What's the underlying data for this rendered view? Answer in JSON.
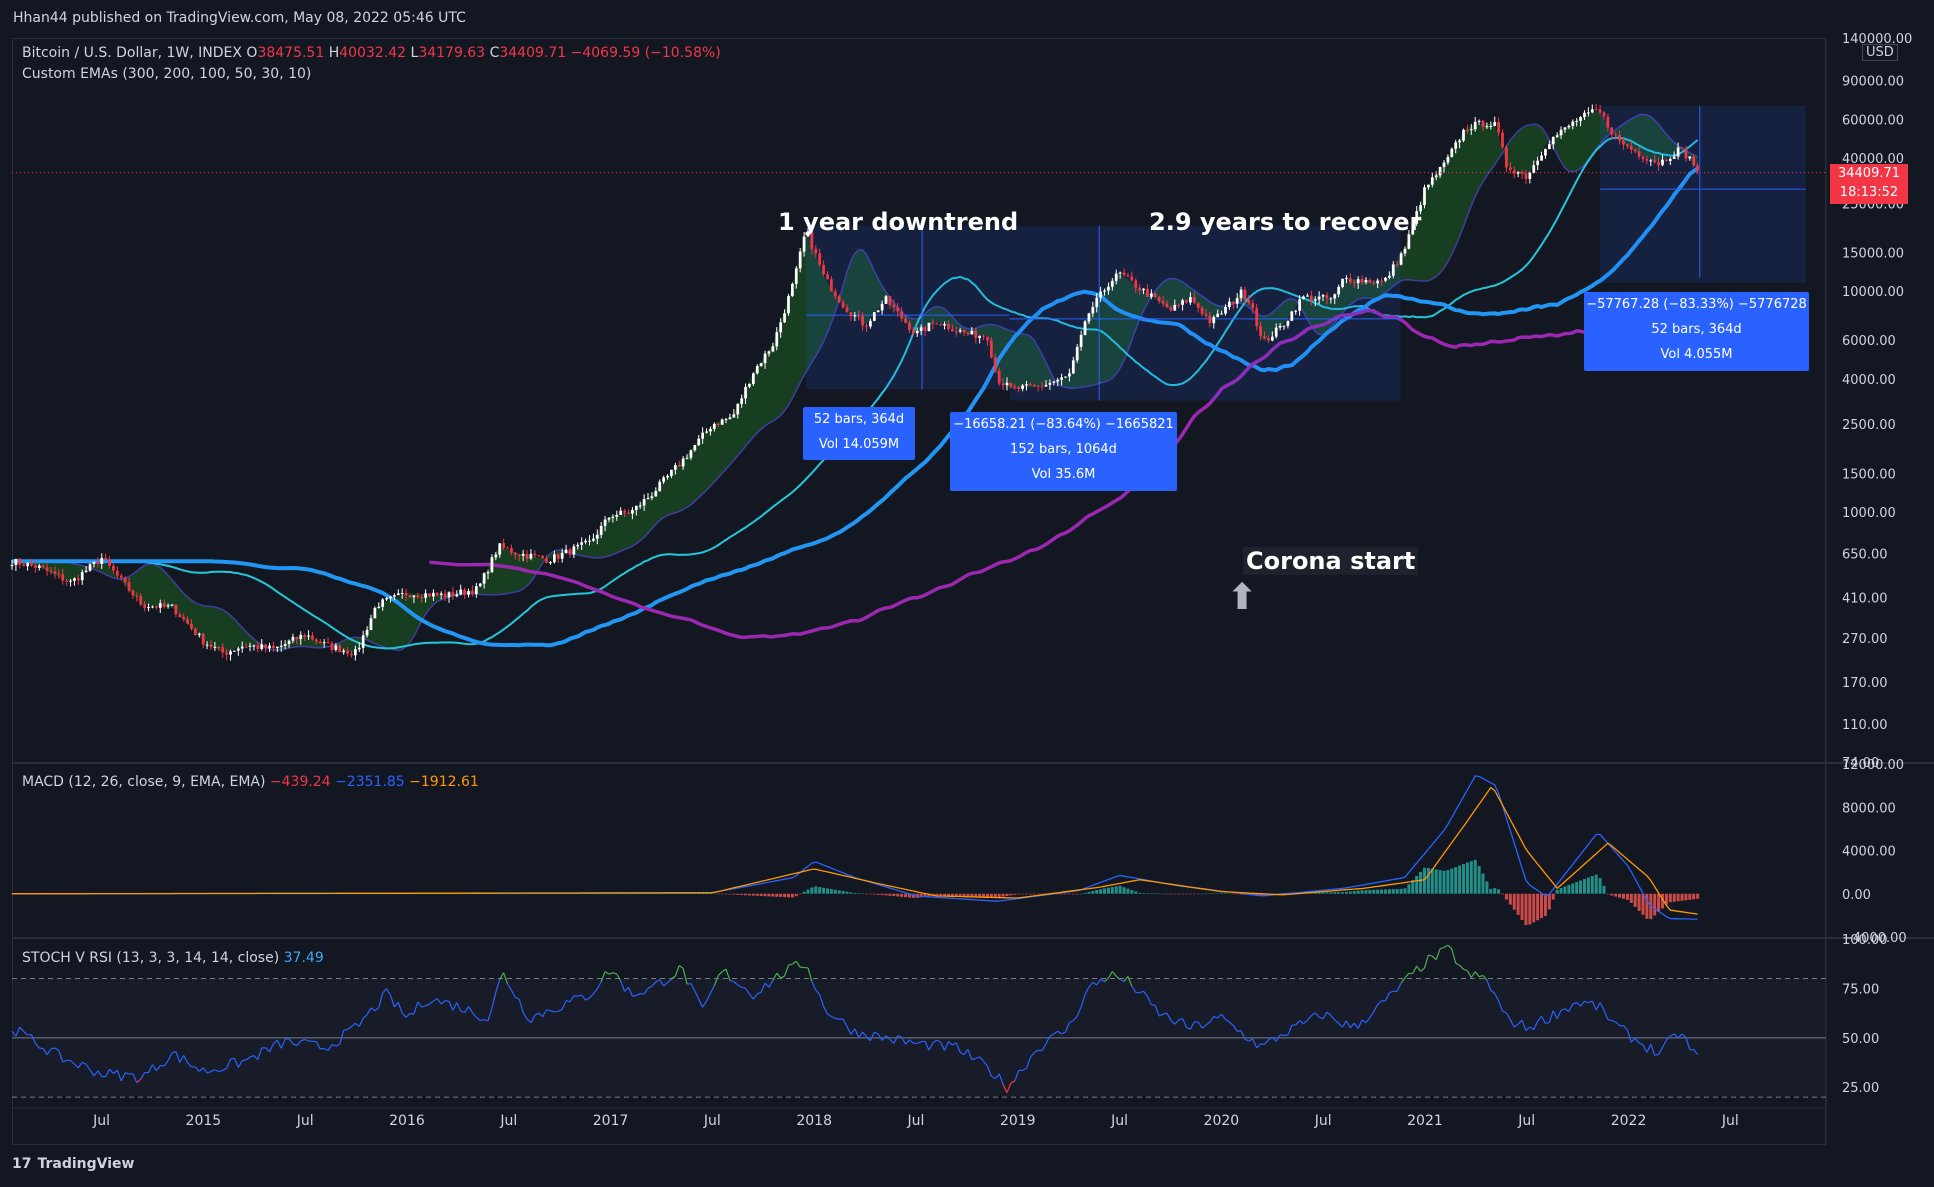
{
  "header": {
    "published": "Hhan44 published on TradingView.com, May 08, 2022 05:46 UTC"
  },
  "symbol": {
    "name": "Bitcoin / U.S. Dollar, 1W, INDEX",
    "o_label": "O",
    "o": "38475.51",
    "h_label": "H",
    "h": "40032.42",
    "l_label": "L",
    "l": "34179.63",
    "c_label": "C",
    "c": "34409.71",
    "change": "−4069.59 (−10.58%)"
  },
  "ema_legend": "Custom EMAs (300, 200, 100, 50, 30, 10)",
  "macd_legend": {
    "label": "MACD (12, 26, close, 9, EMA, EMA)",
    "hist": "−439.24",
    "macd": "−2351.85",
    "signal": "−1912.61"
  },
  "stoch_legend": {
    "label": "STOCH V RSI (13, 3, 3, 14, 14, close)",
    "value": "37.49"
  },
  "price_tag": {
    "price": "34409.71",
    "countdown": "18:13:52"
  },
  "currency": "USD",
  "annotations": {
    "downtrend": "1 year downtrend",
    "recover": "2.9 years to recover",
    "corona": "Corona start",
    "corona_arrow": "⬆"
  },
  "measure_boxes": {
    "box1": {
      "line1": "52 bars, 364d",
      "line2": "Vol 14.059M"
    },
    "box2": {
      "line1": "−16658.21 (−83.64%) −1665821",
      "line2": "152 bars, 1064d",
      "line3": "Vol 35.6M"
    },
    "box3": {
      "line1": "−57767.28 (−83.33%) −5776728",
      "line2": "52 bars, 364d",
      "line3": "Vol 4.055M"
    }
  },
  "footer": {
    "brand": "TradingView",
    "logo": "17"
  },
  "colors": {
    "background": "#131722",
    "up": "#ffffff",
    "down": "#f23645",
    "ema10": "#3f3d9e",
    "ema30": "#26c6da",
    "ema50": "#2196f3",
    "ema100": "#9c27b0",
    "ribbon_up": "#1b5e20",
    "ribbon_down": "#4a1418",
    "macd": "#2962ff",
    "signal": "#ff9800",
    "hist_pos": "#26a69a",
    "hist_neg": "#ef5350",
    "stoch_up": "#4caf50",
    "stoch": "#2962ff",
    "stoch_down": "#f23645",
    "measure": "#2962ff"
  },
  "chart_data": [
    {
      "type": "candlestick",
      "title": "Bitcoin / U.S. Dollar, 1W, INDEX",
      "scale": "log",
      "ylim": [
        74,
        140000
      ],
      "y_ticks": [
        "140000.00",
        "90000.00",
        "60000.00",
        "40000.00",
        "25000.00",
        "15000.00",
        "10000.00",
        "6000.00",
        "4000.00",
        "2500.00",
        "1500.00",
        "1000.00",
        "650.00",
        "410.00",
        "270.00",
        "170.00",
        "110.00",
        "74.00"
      ],
      "x_ticks": [
        "Jul",
        "2015",
        "Jul",
        "2016",
        "Jul",
        "2017",
        "Jul",
        "2018",
        "Jul",
        "2019",
        "Jul",
        "2020",
        "Jul",
        "2021",
        "Jul",
        "2022",
        "Jul"
      ],
      "x_tick_dates": [
        2014.5,
        2015.0,
        2015.5,
        2016.0,
        2016.5,
        2017.0,
        2017.5,
        2018.0,
        2018.5,
        2019.0,
        2019.5,
        2020.0,
        2020.5,
        2021.0,
        2021.5,
        2022.0,
        2022.5
      ],
      "xlim": [
        2014.06,
        2022.96
      ],
      "anchors": [
        [
          2014.06,
          600
        ],
        [
          2014.2,
          560
        ],
        [
          2014.35,
          480
        ],
        [
          2014.5,
          620
        ],
        [
          2014.7,
          380
        ],
        [
          2014.85,
          370
        ],
        [
          2015.0,
          260
        ],
        [
          2015.1,
          230
        ],
        [
          2015.2,
          250
        ],
        [
          2015.35,
          240
        ],
        [
          2015.5,
          280
        ],
        [
          2015.6,
          250
        ],
        [
          2015.75,
          230
        ],
        [
          2015.85,
          380
        ],
        [
          2016.0,
          430
        ],
        [
          2016.2,
          420
        ],
        [
          2016.35,
          450
        ],
        [
          2016.45,
          700
        ],
        [
          2016.55,
          650
        ],
        [
          2016.7,
          610
        ],
        [
          2016.9,
          730
        ],
        [
          2017.0,
          970
        ],
        [
          2017.1,
          1000
        ],
        [
          2017.2,
          1200
        ],
        [
          2017.35,
          1700
        ],
        [
          2017.5,
          2500
        ],
        [
          2017.6,
          2700
        ],
        [
          2017.7,
          4300
        ],
        [
          2017.8,
          5800
        ],
        [
          2017.9,
          11000
        ],
        [
          2017.96,
          19000
        ],
        [
          2018.05,
          11500
        ],
        [
          2018.15,
          8500
        ],
        [
          2018.25,
          7000
        ],
        [
          2018.35,
          9200
        ],
        [
          2018.5,
          6400
        ],
        [
          2018.6,
          7300
        ],
        [
          2018.75,
          6400
        ],
        [
          2018.85,
          6300
        ],
        [
          2018.9,
          4000
        ],
        [
          2018.97,
          3600
        ],
        [
          2019.1,
          3700
        ],
        [
          2019.25,
          4100
        ],
        [
          2019.35,
          8000
        ],
        [
          2019.45,
          11000
        ],
        [
          2019.5,
          12000
        ],
        [
          2019.6,
          10300
        ],
        [
          2019.75,
          8200
        ],
        [
          2019.85,
          9300
        ],
        [
          2019.95,
          7200
        ],
        [
          2020.1,
          9900
        ],
        [
          2020.15,
          8800
        ],
        [
          2020.2,
          5800
        ],
        [
          2020.3,
          7000
        ],
        [
          2020.4,
          9400
        ],
        [
          2020.55,
          9200
        ],
        [
          2020.6,
          11400
        ],
        [
          2020.8,
          11000
        ],
        [
          2020.9,
          15500
        ],
        [
          2021.0,
          29000
        ],
        [
          2021.1,
          38000
        ],
        [
          2021.2,
          55000
        ],
        [
          2021.3,
          58000
        ],
        [
          2021.35,
          56000
        ],
        [
          2021.4,
          37000
        ],
        [
          2021.5,
          33000
        ],
        [
          2021.6,
          47000
        ],
        [
          2021.75,
          60000
        ],
        [
          2021.85,
          66000
        ],
        [
          2021.95,
          48000
        ],
        [
          2022.05,
          42000
        ],
        [
          2022.15,
          38000
        ],
        [
          2022.25,
          44000
        ],
        [
          2022.3,
          40000
        ],
        [
          2022.35,
          34409.71
        ]
      ],
      "series": [
        {
          "name": "EMA 10",
          "lag": 0.2
        },
        {
          "name": "EMA 30",
          "lag": 0.55
        },
        {
          "name": "EMA 50",
          "lag": 0.95
        },
        {
          "name": "EMA 100",
          "lag": 1.9
        }
      ]
    },
    {
      "type": "line",
      "title": "MACD (12, 26, close, 9, EMA, EMA)",
      "ylim": [
        -4000,
        12000
      ],
      "y_ticks": [
        "12000.00",
        "8000.00",
        "4000.00",
        "0.00",
        "−4000.00"
      ],
      "macd": [
        [
          2014.06,
          0
        ],
        [
          2017.5,
          100
        ],
        [
          2017.9,
          1500
        ],
        [
          2018.0,
          3000
        ],
        [
          2018.2,
          1500
        ],
        [
          2018.5,
          -200
        ],
        [
          2018.9,
          -700
        ],
        [
          2019.3,
          300
        ],
        [
          2019.5,
          1700
        ],
        [
          2019.8,
          700
        ],
        [
          2020.2,
          -200
        ],
        [
          2020.6,
          500
        ],
        [
          2020.9,
          1500
        ],
        [
          2021.1,
          6000
        ],
        [
          2021.25,
          11000
        ],
        [
          2021.35,
          10000
        ],
        [
          2021.5,
          1000
        ],
        [
          2021.6,
          -300
        ],
        [
          2021.85,
          5700
        ],
        [
          2022.0,
          2500
        ],
        [
          2022.1,
          -1000
        ],
        [
          2022.2,
          -2300
        ],
        [
          2022.35,
          -2351.85
        ]
      ],
      "signal": [
        [
          2014.06,
          0
        ],
        [
          2017.5,
          80
        ],
        [
          2018.0,
          2300
        ],
        [
          2018.3,
          1000
        ],
        [
          2018.6,
          -200
        ],
        [
          2019.0,
          -400
        ],
        [
          2019.4,
          600
        ],
        [
          2019.6,
          1300
        ],
        [
          2020.0,
          200
        ],
        [
          2020.3,
          -100
        ],
        [
          2020.7,
          500
        ],
        [
          2021.0,
          1300
        ],
        [
          2021.2,
          6500
        ],
        [
          2021.33,
          10000
        ],
        [
          2021.5,
          4000
        ],
        [
          2021.65,
          500
        ],
        [
          2021.9,
          4700
        ],
        [
          2022.1,
          1500
        ],
        [
          2022.2,
          -1500
        ],
        [
          2022.35,
          -1912.61
        ]
      ]
    },
    {
      "type": "line",
      "title": "STOCH V RSI (13, 3, 3, 14, 14, close)",
      "ylim": [
        15,
        100
      ],
      "y_ticks": [
        "100.00",
        "75.00",
        "50.00",
        "25.00"
      ],
      "bands": [
        80,
        50,
        20
      ],
      "values": [
        [
          2014.06,
          55
        ],
        [
          2014.3,
          40
        ],
        [
          2014.5,
          32
        ],
        [
          2014.7,
          30
        ],
        [
          2014.85,
          42
        ],
        [
          2015.0,
          33
        ],
        [
          2015.2,
          38
        ],
        [
          2015.4,
          48
        ],
        [
          2015.6,
          45
        ],
        [
          2015.75,
          55
        ],
        [
          2015.9,
          72
        ],
        [
          2016.0,
          60
        ],
        [
          2016.1,
          70
        ],
        [
          2016.25,
          66
        ],
        [
          2016.4,
          60
        ],
        [
          2016.47,
          83
        ],
        [
          2016.6,
          60
        ],
        [
          2016.75,
          66
        ],
        [
          2016.9,
          72
        ],
        [
          2017.0,
          85
        ],
        [
          2017.1,
          72
        ],
        [
          2017.2,
          75
        ],
        [
          2017.35,
          85
        ],
        [
          2017.45,
          63
        ],
        [
          2017.55,
          84
        ],
        [
          2017.7,
          72
        ],
        [
          2017.85,
          83
        ],
        [
          2017.96,
          88
        ],
        [
          2018.05,
          65
        ],
        [
          2018.2,
          53
        ],
        [
          2018.35,
          50
        ],
        [
          2018.5,
          47
        ],
        [
          2018.7,
          45
        ],
        [
          2018.85,
          35
        ],
        [
          2018.95,
          25
        ],
        [
          2019.1,
          45
        ],
        [
          2019.25,
          55
        ],
        [
          2019.35,
          75
        ],
        [
          2019.45,
          82
        ],
        [
          2019.55,
          78
        ],
        [
          2019.7,
          62
        ],
        [
          2019.85,
          55
        ],
        [
          2020.0,
          60
        ],
        [
          2020.2,
          45
        ],
        [
          2020.3,
          52
        ],
        [
          2020.5,
          62
        ],
        [
          2020.65,
          55
        ],
        [
          2020.8,
          68
        ],
        [
          2020.9,
          78
        ],
        [
          2021.0,
          88
        ],
        [
          2021.12,
          95
        ],
        [
          2021.2,
          82
        ],
        [
          2021.3,
          80
        ],
        [
          2021.4,
          60
        ],
        [
          2021.5,
          55
        ],
        [
          2021.6,
          60
        ],
        [
          2021.75,
          68
        ],
        [
          2021.85,
          66
        ],
        [
          2021.95,
          55
        ],
        [
          2022.05,
          48
        ],
        [
          2022.15,
          42
        ],
        [
          2022.25,
          53
        ],
        [
          2022.35,
          37.49
        ]
      ]
    }
  ]
}
